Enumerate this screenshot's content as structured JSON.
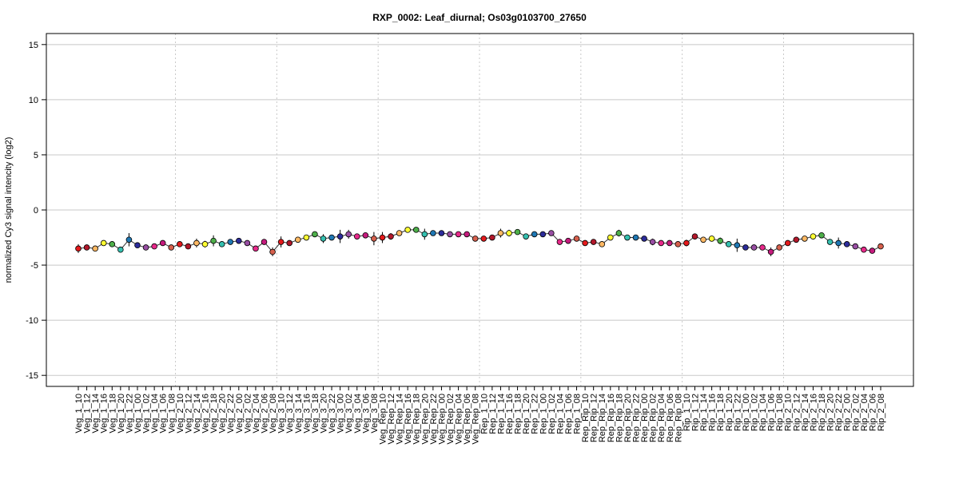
{
  "chart_data": {
    "type": "line",
    "title": "RXP_0002: Leaf_diurnal; Os03g0103700_27650",
    "xlabel": "",
    "ylabel": "normalized Cy3 signal intencity (log2)",
    "ylim": [
      -16,
      16
    ],
    "yticks": [
      -15,
      -10,
      -5,
      0,
      5,
      10,
      15
    ],
    "grid": true,
    "legend": "none",
    "categories": [
      "Veg_1_10",
      "Veg_1_12",
      "Veg_1_14",
      "Veg_1_16",
      "Veg_1_18",
      "Veg_1_20",
      "Veg_1_22",
      "Veg_1_00",
      "Veg_1_02",
      "Veg_1_04",
      "Veg_1_06",
      "Veg_1_08",
      "Veg_2_10",
      "Veg_2_12",
      "Veg_2_14",
      "Veg_2_16",
      "Veg_2_18",
      "Veg_2_20",
      "Veg_2_22",
      "Veg_2_00",
      "Veg_2_02",
      "Veg_2_04",
      "Veg_2_06",
      "Veg_2_08",
      "Veg_3_10",
      "Veg_3_12",
      "Veg_3_14",
      "Veg_3_16",
      "Veg_3_18",
      "Veg_3_20",
      "Veg_3_22",
      "Veg_3_00",
      "Veg_3_02",
      "Veg_3_04",
      "Veg_3_06",
      "Veg_3_08",
      "Veg_Rep_10",
      "Veg_Rep_12",
      "Veg_Rep_14",
      "Veg_Rep_16",
      "Veg_Rep_18",
      "Veg_Rep_20",
      "Veg_Rep_22",
      "Veg_Rep_00",
      "Veg_Rep_02",
      "Veg_Rep_04",
      "Veg_Rep_06",
      "Veg_Rep_08",
      "Rep_1_10",
      "Rep_1_12",
      "Rep_1_14",
      "Rep_1_16",
      "Rep_1_18",
      "Rep_1_20",
      "Rep_1_22",
      "Rep_1_00",
      "Rep_1_02",
      "Rep_1_04",
      "Rep_1_06",
      "Rep_1_08",
      "Rep_Rip_10",
      "Rep_Rip_12",
      "Rep_Rip_14",
      "Rep_Rip_16",
      "Rep_Rip_18",
      "Rep_Rip_20",
      "Rep_Rip_22",
      "Rep_Rip_00",
      "Rep_Rip_02",
      "Rep_Rip_04",
      "Rep_Rip_06",
      "Rep_Rip_08",
      "Rip_1_10",
      "Rip_1_12",
      "Rip_1_14",
      "Rip_1_16",
      "Rip_1_18",
      "Rip_1_20",
      "Rip_1_22",
      "Rip_1_00",
      "Rip_1_02",
      "Rip_1_04",
      "Rip_1_06",
      "Rip_1_08",
      "Rip_2_10",
      "Rip_2_12",
      "Rip_2_14",
      "Rip_2_16",
      "Rip_2_18",
      "Rip_2_20",
      "Rip_2_22",
      "Rip_2_00",
      "Rip_2_02",
      "Rip_2_04",
      "Rip_2_06",
      "Rip_2_08"
    ],
    "values": [
      -3.5,
      -3.4,
      -3.5,
      -3.0,
      -3.1,
      -3.6,
      -2.7,
      -3.2,
      -3.4,
      -3.3,
      -3.0,
      -3.4,
      -3.1,
      -3.3,
      -3.0,
      -3.1,
      -2.8,
      -3.1,
      -2.9,
      -2.8,
      -3.0,
      -3.5,
      -2.9,
      -3.8,
      -2.9,
      -3.0,
      -2.7,
      -2.5,
      -2.2,
      -2.6,
      -2.5,
      -2.4,
      -2.2,
      -2.4,
      -2.3,
      -2.6,
      -2.5,
      -2.4,
      -2.1,
      -1.8,
      -1.8,
      -2.2,
      -2.1,
      -2.1,
      -2.2,
      -2.2,
      -2.2,
      -2.6,
      -2.6,
      -2.5,
      -2.1,
      -2.1,
      -2.0,
      -2.4,
      -2.2,
      -2.2,
      -2.1,
      -2.9,
      -2.8,
      -2.6,
      -3.0,
      -2.9,
      -3.1,
      -2.5,
      -2.1,
      -2.5,
      -2.5,
      -2.6,
      -2.9,
      -3.0,
      -3.0,
      -3.1,
      -3.0,
      -2.4,
      -2.7,
      -2.6,
      -2.8,
      -3.1,
      -3.2,
      -3.4,
      -3.4,
      -3.4,
      -3.8,
      -3.4,
      -3.0,
      -2.7,
      -2.6,
      -2.4,
      -2.3,
      -2.9,
      -3.0,
      -3.1,
      -3.3,
      -3.6,
      -3.7,
      -3.3
    ],
    "errors": [
      0.4,
      0.2,
      0.1,
      0.2,
      0.1,
      0.2,
      0.6,
      0.2,
      0.1,
      0.2,
      0.1,
      0.2,
      0.2,
      0.2,
      0.4,
      0.3,
      0.5,
      0.2,
      0.1,
      0.1,
      0.2,
      0.1,
      0.2,
      0.4,
      0.5,
      0.2,
      0.1,
      0.2,
      0.2,
      0.4,
      0.2,
      0.6,
      0.4,
      0.2,
      0.2,
      0.6,
      0.5,
      0.3,
      0.2,
      0.1,
      0.2,
      0.5,
      0.2,
      0.1,
      0.2,
      0.1,
      0.1,
      0.2,
      0.2,
      0.2,
      0.4,
      0.3,
      0.2,
      0.2,
      0.2,
      0.2,
      0.1,
      0.2,
      0.2,
      0.2,
      0.2,
      0.1,
      0.2,
      0.2,
      0.3,
      0.2,
      0.1,
      0.1,
      0.3,
      0.2,
      0.1,
      0.2,
      0.3,
      0.2,
      0.2,
      0.2,
      0.3,
      0.2,
      0.6,
      0.2,
      0.2,
      0.2,
      0.4,
      0.2,
      0.2,
      0.2,
      0.2,
      0.2,
      0.1,
      0.2,
      0.5,
      0.2,
      0.1,
      0.1,
      0.1,
      0.2
    ],
    "group_boundaries_after_index": [
      11,
      23,
      35,
      47,
      59,
      71,
      83
    ],
    "point_colors": [
      "#e41a1c",
      "#b2182b",
      "#fdb863",
      "#ffff33",
      "#4daf4a",
      "#35c0b0",
      "#1f78b4",
      "#2c2c9a",
      "#984ea3",
      "#e7298a",
      "#c51b7d",
      "#d6604d"
    ],
    "colors": {
      "line": "#333333",
      "point_outline": "#000000",
      "grid": "#c8c8c8",
      "divider": "#c8c8c8",
      "frame": "#000000"
    }
  }
}
